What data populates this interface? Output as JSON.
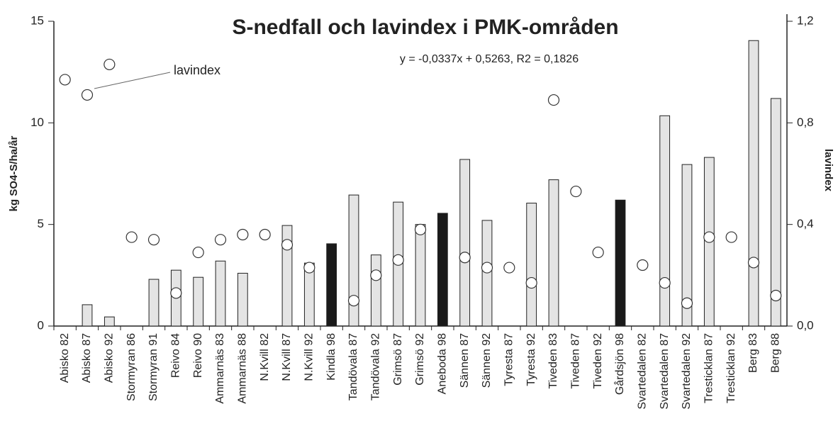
{
  "chart_data": {
    "type": "bar-scatter",
    "title": "S-nedfall och lavindex i PMK-områden",
    "annotation": "y = -0,0337x + 0,5263, R2 = 0,1826",
    "ylabel": "kg SO4-S/ha/år",
    "y2label": "lavindex",
    "categories": [
      "Abisko 82",
      "Abisko 87",
      "Abisko 92",
      "Stormyran 86",
      "Stormyran 91",
      "Reivo 84",
      "Reivo 90",
      "Ammarnäs 83",
      "Ammarnäs 88",
      "N.Kvill 82",
      "N.Kvill 87",
      "N.Kvill 92",
      "Kindla 98",
      "Tandövala 87",
      "Tandövala 92",
      "Grimsö 87",
      "Grimsö 92",
      "Aneboda 98",
      "Sännen 87",
      "Sännen 92",
      "Tyresta 87",
      "Tyresta 92",
      "Tiveden 83",
      "Tiveden 87",
      "Tiveden 92",
      "Gårdsjön 98",
      "Svartedalen 82",
      "Svartedalen 87",
      "Svartedalen 92",
      "Tresticklan 87",
      "Tresticklan 92",
      "Berg 83",
      "Berg 88"
    ],
    "series": [
      {
        "values": [
          null,
          1.05,
          0.45,
          null,
          2.3,
          2.75,
          2.4,
          3.2,
          2.6,
          null,
          4.95,
          3.1,
          4.05,
          6.45,
          3.5,
          6.1,
          5.0,
          5.55,
          8.2,
          5.2,
          null,
          6.05,
          7.2,
          null,
          null,
          6.2,
          null,
          10.35,
          7.95,
          8.3,
          null,
          14.05,
          11.2
        ],
        "colors": [
          "#e4e4e4",
          "#e4e4e4",
          "#e4e4e4",
          "#e4e4e4",
          "#e4e4e4",
          "#e4e4e4",
          "#e4e4e4",
          "#e4e4e4",
          "#e4e4e4",
          "#e4e4e4",
          "#e4e4e4",
          "#e4e4e4",
          "#1a1a1a",
          "#e4e4e4",
          "#e4e4e4",
          "#e4e4e4",
          "#e4e4e4",
          "#1a1a1a",
          "#e4e4e4",
          "#e4e4e4",
          "#e4e4e4",
          "#e4e4e4",
          "#e4e4e4",
          "#e4e4e4",
          "#e4e4e4",
          "#1a1a1a",
          "#e4e4e4",
          "#e4e4e4",
          "#e4e4e4",
          "#e4e4e4",
          "#e4e4e4",
          "#e4e4e4",
          "#e4e4e4"
        ]
      },
      {
        "name": "lavindex",
        "axis": "y2",
        "color": "#ffffff",
        "values": [
          0.97,
          0.91,
          1.03,
          0.35,
          0.34,
          0.13,
          0.29,
          0.34,
          0.36,
          0.36,
          0.32,
          0.23,
          null,
          0.1,
          0.2,
          0.26,
          0.38,
          null,
          0.27,
          0.23,
          0.23,
          0.17,
          0.89,
          0.53,
          0.29,
          null,
          0.24,
          0.17,
          0.09,
          0.35,
          0.35,
          0.25,
          0.12
        ]
      }
    ],
    "ylim": [
      0,
      15
    ],
    "yticks": [
      0,
      5,
      10,
      15
    ],
    "y2lim": [
      0,
      1.2
    ],
    "y2ticks": [
      {
        "value": 0,
        "label": "0,0"
      },
      {
        "value": 0.4,
        "label": "0,4"
      },
      {
        "value": 0.8,
        "label": "0,8"
      },
      {
        "value": 1.2,
        "label": "1,2"
      }
    ]
  }
}
